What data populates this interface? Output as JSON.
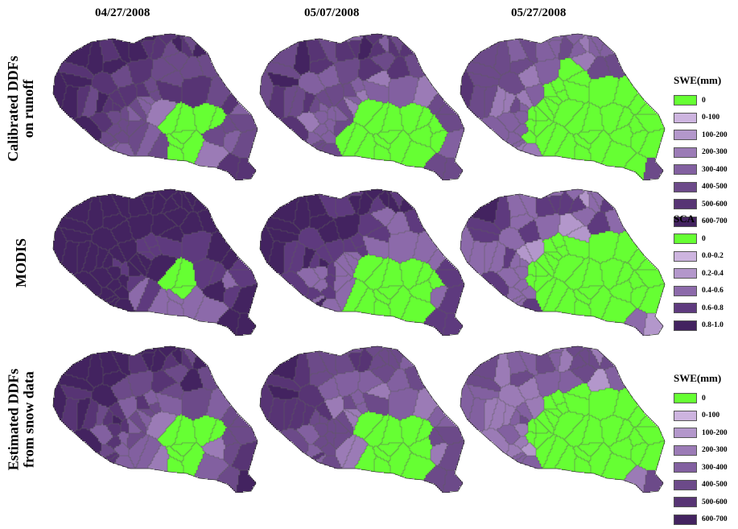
{
  "dates": [
    "04/27/2008",
    "05/07/2008",
    "05/27/2008"
  ],
  "row_labels": [
    [
      "Calibrated DDFs",
      "on runoff"
    ],
    [
      "MODIS"
    ],
    [
      "Estimated DDFs",
      "from snow data"
    ]
  ],
  "legends": [
    {
      "title": "SWE(mm)",
      "items": [
        {
          "label": "0",
          "color": "#66ff33"
        },
        {
          "label": "0-100",
          "color": "#cdb4df"
        },
        {
          "label": "100-200",
          "color": "#b397cb"
        },
        {
          "label": "200-300",
          "color": "#9b7bb6"
        },
        {
          "label": "300-400",
          "color": "#8260a0"
        },
        {
          "label": "400-500",
          "color": "#6c4a89"
        },
        {
          "label": "500-600",
          "color": "#573474"
        },
        {
          "label": "600-700",
          "color": "#432360"
        }
      ]
    },
    {
      "title": "SCA",
      "items": [
        {
          "label": "0",
          "color": "#66ff33"
        },
        {
          "label": "0.0-0.2",
          "color": "#cdb4df"
        },
        {
          "label": "0.2-0.4",
          "color": "#b397cb"
        },
        {
          "label": "0.4-0.6",
          "color": "#8c6aaa"
        },
        {
          "label": "0.6-0.8",
          "color": "#5e3a7e"
        },
        {
          "label": "0.8-1.0",
          "color": "#432360"
        }
      ]
    },
    {
      "title": "SWE(mm)",
      "items": [
        {
          "label": "0",
          "color": "#66ff33"
        },
        {
          "label": "0-100",
          "color": "#cdb4df"
        },
        {
          "label": "100-200",
          "color": "#b397cb"
        },
        {
          "label": "200-300",
          "color": "#9b7bb6"
        },
        {
          "label": "300-400",
          "color": "#8260a0"
        },
        {
          "label": "400-500",
          "color": "#6c4a89"
        },
        {
          "label": "500-600",
          "color": "#573474"
        },
        {
          "label": "600-700",
          "color": "#432360"
        }
      ]
    }
  ],
  "snow_free_extent": [
    [
      0.1,
      0.2,
      0.47
    ],
    [
      0.04,
      0.18,
      0.42
    ],
    [
      0.1,
      0.16,
      0.44
    ]
  ]
}
